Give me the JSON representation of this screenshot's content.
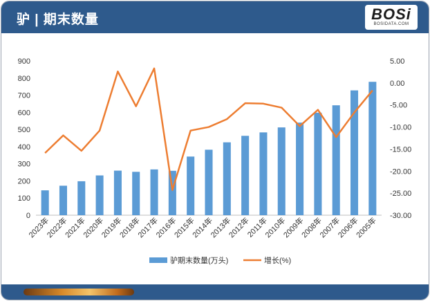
{
  "header": {
    "title": "驴 | 期末数量"
  },
  "logo": {
    "text": "BOSi",
    "sub": "BOSIDATA.COM"
  },
  "colors": {
    "bar": "#5b9bd5",
    "line": "#ed7d31",
    "header": "#2e5a8c"
  },
  "chart_data": {
    "type": "bar",
    "categories": [
      "2023年",
      "2022年",
      "2021年",
      "2020年",
      "2019年",
      "2018年",
      "2017年",
      "2016年",
      "2015年",
      "2014年",
      "2013年",
      "2012年",
      "2011年",
      "2010年",
      "2009年",
      "2008年",
      "2007年",
      "2006年",
      "2005年"
    ],
    "series": [
      {
        "name": "驴期末数量(万头)",
        "type": "bar",
        "axis": "left",
        "values": [
          145,
          172,
          198,
          232,
          260,
          253,
          267,
          259,
          342,
          382,
          425,
          463,
          483,
          512,
          540,
          598,
          641,
          728,
          778
        ]
      },
      {
        "name": "增长(%)",
        "type": "line",
        "axis": "right",
        "values": [
          -15.9,
          -11.9,
          -15.4,
          -10.8,
          2.6,
          -5.3,
          3.3,
          -24.3,
          -10.8,
          -10.0,
          -8.2,
          -4.6,
          -4.7,
          -5.6,
          -9.8,
          -6.1,
          -12.3,
          -6.7,
          -1.7
        ]
      }
    ],
    "y_left": {
      "min": 0,
      "max": 900,
      "ticks": [
        "0",
        "100",
        "200",
        "300",
        "400",
        "500",
        "600",
        "700",
        "800",
        "900"
      ]
    },
    "y_right": {
      "min": -30,
      "max": 5,
      "ticks": [
        "5.00",
        "0.00",
        "-5.00",
        "-10.00",
        "-15.00",
        "-20.00",
        "-25.00",
        "-30.00"
      ]
    },
    "legend": {
      "position": "bottom",
      "items": [
        "驴期末数量(万头)",
        "增长(%)"
      ]
    },
    "grid": false
  }
}
